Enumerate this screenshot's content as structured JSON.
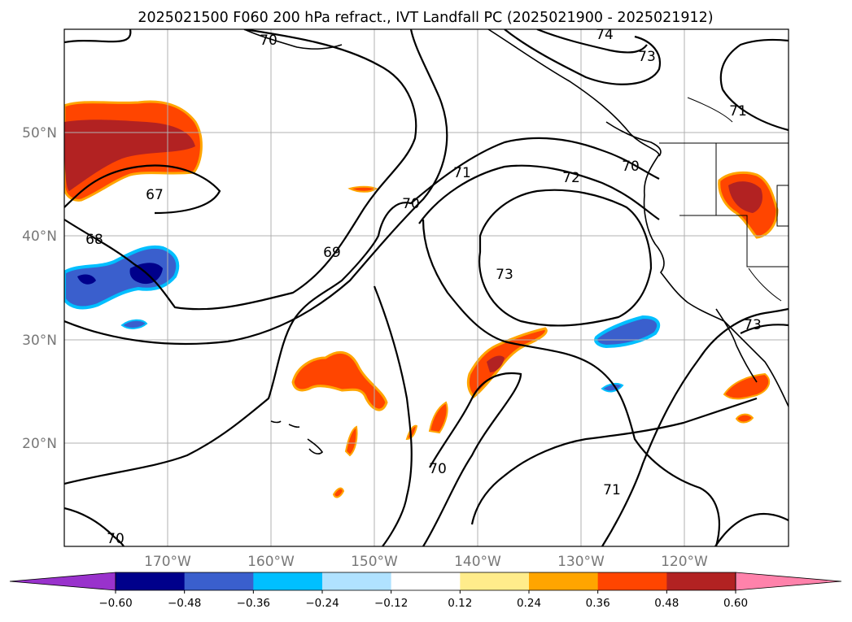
{
  "title": "2025021500 F060 200 hPa refract., IVT Landfall PC (2025021900 - 2025021912)",
  "lon_labels": [
    "170°W",
    "160°W",
    "150°W",
    "140°W",
    "130°W",
    "120°W"
  ],
  "lat_labels": [
    "50°N",
    "40°N",
    "30°N",
    "20°N"
  ],
  "contour_labels": [
    "70",
    "74",
    "73",
    "71",
    "67",
    "68",
    "69",
    "70",
    "71",
    "72",
    "70",
    "73",
    "73",
    "70",
    "71",
    "70"
  ],
  "colorbar": {
    "ticks": [
      "−0.60",
      "−0.48",
      "−0.36",
      "−0.24",
      "−0.12",
      "0.12",
      "0.24",
      "0.36",
      "0.48",
      "0.60"
    ],
    "colors": [
      "#9932cc",
      "#00008b",
      "#3a5fcd",
      "#00bfff",
      "#b0e2ff",
      "#ffffff",
      "#ffec8b",
      "#ffa500",
      "#ff4500",
      "#b22222",
      "#ff82ab"
    ]
  },
  "map_extent": {
    "lon": [
      -180,
      -110
    ],
    "lat": [
      10,
      60
    ]
  },
  "colors": {
    "neg_dark": "#00008b",
    "neg_mid": "#3a5fcd",
    "neg_light": "#00bfff",
    "pos_yellow": "#ffec8b",
    "pos_orange": "#ffa500",
    "pos_red": "#ff4500",
    "pos_dark": "#b22222",
    "pos_pink": "#ff82ab"
  }
}
